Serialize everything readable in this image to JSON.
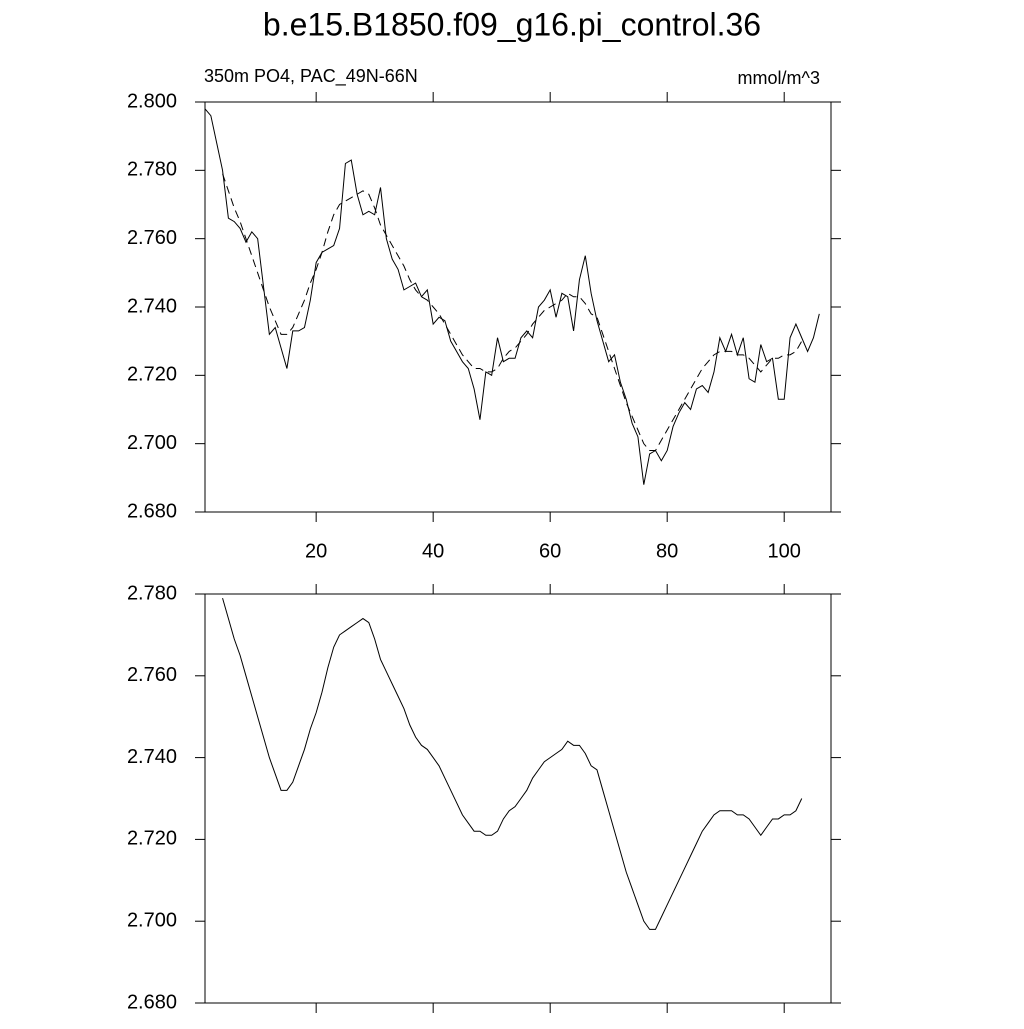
{
  "chart_data": [
    {
      "type": "line",
      "title": "b.e15.B1850.f09_g16.pi_control.36",
      "left_string": "350m PO4, PAC_49N-66N",
      "right_string": "mmol/m^3",
      "x": [
        1,
        2,
        3,
        4,
        5,
        6,
        7,
        8,
        9,
        10,
        11,
        12,
        13,
        14,
        15,
        16,
        17,
        18,
        19,
        20,
        21,
        22,
        23,
        24,
        25,
        26,
        27,
        28,
        29,
        30,
        31,
        32,
        33,
        34,
        35,
        36,
        37,
        38,
        39,
        40,
        41,
        42,
        43,
        44,
        45,
        46,
        47,
        48,
        49,
        50,
        51,
        52,
        53,
        54,
        55,
        56,
        57,
        58,
        59,
        60,
        61,
        62,
        63,
        64,
        65,
        66,
        67,
        68,
        69,
        70,
        71,
        72,
        73,
        74,
        75,
        76,
        77,
        78,
        79,
        80,
        81,
        82,
        83,
        84,
        85,
        86,
        87,
        88,
        89,
        90,
        91,
        92,
        93,
        94,
        95,
        96,
        97,
        98,
        99,
        100,
        101,
        102,
        103,
        104,
        105,
        106
      ],
      "series": [
        {
          "color": "#000000",
          "dash": false,
          "values": [
            2.798,
            2.796,
            2.788,
            2.78,
            2.766,
            2.765,
            2.763,
            2.759,
            2.762,
            2.76,
            2.746,
            2.732,
            2.734,
            2.728,
            2.722,
            2.733,
            2.733,
            2.734,
            2.742,
            2.753,
            2.756,
            2.757,
            2.758,
            2.763,
            2.782,
            2.783,
            2.773,
            2.767,
            2.768,
            2.767,
            2.775,
            2.76,
            2.754,
            2.751,
            2.745,
            2.746,
            2.747,
            2.743,
            2.745,
            2.735,
            2.737,
            2.736,
            2.73,
            2.727,
            2.724,
            2.722,
            2.716,
            2.707,
            2.721,
            2.72,
            2.731,
            2.724,
            2.725,
            2.725,
            2.731,
            2.733,
            2.731,
            2.74,
            2.742,
            2.745,
            2.737,
            2.744,
            2.743,
            2.733,
            2.748,
            2.755,
            2.744,
            2.736,
            2.73,
            2.724,
            2.726,
            2.718,
            2.713,
            2.706,
            2.702,
            2.688,
            2.697,
            2.698,
            2.695,
            2.698,
            2.705,
            2.709,
            2.712,
            2.71,
            2.716,
            2.717,
            2.715,
            2.721,
            2.731,
            2.727,
            2.732,
            2.726,
            2.731,
            2.719,
            2.718,
            2.729,
            2.724,
            2.725,
            2.713,
            2.713,
            2.731,
            2.735,
            2.731,
            2.727,
            2.731,
            2.738
          ]
        },
        {
          "color": "#000000",
          "dash": true,
          "values": [
            null,
            null,
            null,
            2.779,
            2.774,
            2.769,
            2.765,
            2.76,
            2.755,
            2.75,
            2.745,
            2.74,
            2.736,
            2.732,
            2.732,
            2.734,
            2.738,
            2.742,
            2.747,
            2.751,
            2.756,
            2.762,
            2.767,
            2.77,
            2.771,
            2.772,
            2.773,
            2.774,
            2.773,
            2.769,
            2.764,
            2.761,
            2.758,
            2.755,
            2.752,
            2.748,
            2.745,
            2.743,
            2.742,
            2.74,
            2.738,
            2.735,
            2.732,
            2.729,
            2.726,
            2.724,
            2.722,
            2.722,
            2.721,
            2.721,
            2.722,
            2.725,
            2.727,
            2.728,
            2.73,
            2.732,
            2.735,
            2.737,
            2.739,
            2.74,
            2.741,
            2.742,
            2.744,
            2.743,
            2.743,
            2.741,
            2.738,
            2.737,
            2.732,
            2.727,
            2.722,
            2.717,
            2.712,
            2.708,
            2.704,
            2.7,
            2.698,
            2.698,
            2.701,
            2.704,
            2.707,
            2.71,
            2.713,
            2.716,
            2.719,
            2.722,
            2.724,
            2.726,
            2.727,
            2.727,
            2.727,
            2.726,
            2.726,
            2.725,
            2.723,
            2.721,
            2.723,
            2.725,
            2.725,
            2.726,
            2.726,
            2.727,
            2.73,
            null,
            null,
            null
          ]
        }
      ],
      "xlim": [
        1,
        108
      ],
      "xticks": [
        20,
        40,
        60,
        80,
        100
      ],
      "x_tick_labels": true,
      "ylim": [
        2.68,
        2.8
      ],
      "yticks": [
        {
          "value": 2.68,
          "label": "2.680"
        },
        {
          "value": 2.7,
          "label": "2.700"
        },
        {
          "value": 2.72,
          "label": "2.720"
        },
        {
          "value": 2.74,
          "label": "2.740"
        },
        {
          "value": 2.76,
          "label": "2.760"
        },
        {
          "value": 2.78,
          "label": "2.780"
        },
        {
          "value": 2.8,
          "label": "2.800"
        }
      ]
    },
    {
      "type": "line",
      "x": [
        4,
        5,
        6,
        7,
        8,
        9,
        10,
        11,
        12,
        13,
        14,
        15,
        16,
        17,
        18,
        19,
        20,
        21,
        22,
        23,
        24,
        25,
        26,
        27,
        28,
        29,
        30,
        31,
        32,
        33,
        34,
        35,
        36,
        37,
        38,
        39,
        40,
        41,
        42,
        43,
        44,
        45,
        46,
        47,
        48,
        49,
        50,
        51,
        52,
        53,
        54,
        55,
        56,
        57,
        58,
        59,
        60,
        61,
        62,
        63,
        64,
        65,
        66,
        67,
        68,
        69,
        70,
        71,
        72,
        73,
        74,
        75,
        76,
        77,
        78,
        79,
        80,
        81,
        82,
        83,
        84,
        85,
        86,
        87,
        88,
        89,
        90,
        91,
        92,
        93,
        94,
        95,
        96,
        97,
        98,
        99,
        100,
        101,
        102,
        103
      ],
      "series": [
        {
          "color": "#000000",
          "dash": false,
          "values": [
            2.779,
            2.774,
            2.769,
            2.765,
            2.76,
            2.755,
            2.75,
            2.745,
            2.74,
            2.736,
            2.732,
            2.732,
            2.734,
            2.738,
            2.742,
            2.747,
            2.751,
            2.756,
            2.762,
            2.767,
            2.77,
            2.771,
            2.772,
            2.773,
            2.774,
            2.773,
            2.769,
            2.764,
            2.761,
            2.758,
            2.755,
            2.752,
            2.748,
            2.745,
            2.743,
            2.742,
            2.74,
            2.738,
            2.735,
            2.732,
            2.729,
            2.726,
            2.724,
            2.722,
            2.722,
            2.721,
            2.721,
            2.722,
            2.725,
            2.727,
            2.728,
            2.73,
            2.732,
            2.735,
            2.737,
            2.739,
            2.74,
            2.741,
            2.742,
            2.744,
            2.743,
            2.743,
            2.741,
            2.738,
            2.737,
            2.732,
            2.727,
            2.722,
            2.717,
            2.712,
            2.708,
            2.704,
            2.7,
            2.698,
            2.698,
            2.701,
            2.704,
            2.707,
            2.71,
            2.713,
            2.716,
            2.719,
            2.722,
            2.724,
            2.726,
            2.727,
            2.727,
            2.727,
            2.726,
            2.726,
            2.725,
            2.723,
            2.721,
            2.723,
            2.725,
            2.725,
            2.726,
            2.726,
            2.727,
            2.73
          ]
        }
      ],
      "xlim": [
        1,
        108
      ],
      "xticks": [
        20,
        40,
        60,
        80,
        100
      ],
      "x_tick_labels": false,
      "ylim": [
        2.68,
        2.78
      ],
      "yticks": [
        {
          "value": 2.68,
          "label": "2.680"
        },
        {
          "value": 2.7,
          "label": "2.700"
        },
        {
          "value": 2.72,
          "label": "2.720"
        },
        {
          "value": 2.74,
          "label": "2.740"
        },
        {
          "value": 2.76,
          "label": "2.760"
        },
        {
          "value": 2.78,
          "label": "2.780"
        }
      ]
    }
  ]
}
